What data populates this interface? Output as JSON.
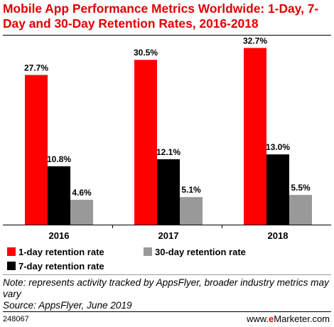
{
  "title": "Mobile App Performance Metrics Worldwide: 1-Day, 7-Day and 30-Day Retention Rates, 2016-2018",
  "note": "Note: represents activity tracked by AppsFlyer, broader industry metrics may vary",
  "source": "Source: AppsFlyer, June 2019",
  "chart_id": "248067",
  "logo": {
    "prefix": "www.",
    "brand_e": "e",
    "brand_rest": "Marketer",
    "suffix": ".com"
  },
  "colors": {
    "red": "#ff0000",
    "black": "#000000",
    "gray": "#999999",
    "title": "#e00000"
  },
  "chart_data": {
    "type": "bar",
    "title": "Mobile App Performance Metrics Worldwide: 1-Day, 7-Day and 30-Day Retention Rates, 2016-2018",
    "categories": [
      "2016",
      "2017",
      "2018"
    ],
    "series": [
      {
        "name": "1-day retention rate",
        "values": [
          27.7,
          30.5,
          32.7
        ],
        "labels": [
          "27.7%",
          "30.5%",
          "32.7%"
        ],
        "color": "#ff0000"
      },
      {
        "name": "7-day retention rate",
        "values": [
          10.8,
          12.1,
          13.0
        ],
        "labels": [
          "10.8%",
          "12.1%",
          "13.0%"
        ],
        "color": "#000000"
      },
      {
        "name": "30-day retention rate",
        "values": [
          4.6,
          5.1,
          5.5
        ],
        "labels": [
          "4.6%",
          "5.1%",
          "5.5%"
        ],
        "color": "#999999"
      }
    ],
    "ylim": [
      0,
      35
    ],
    "grid": false,
    "legend": "bottom"
  }
}
